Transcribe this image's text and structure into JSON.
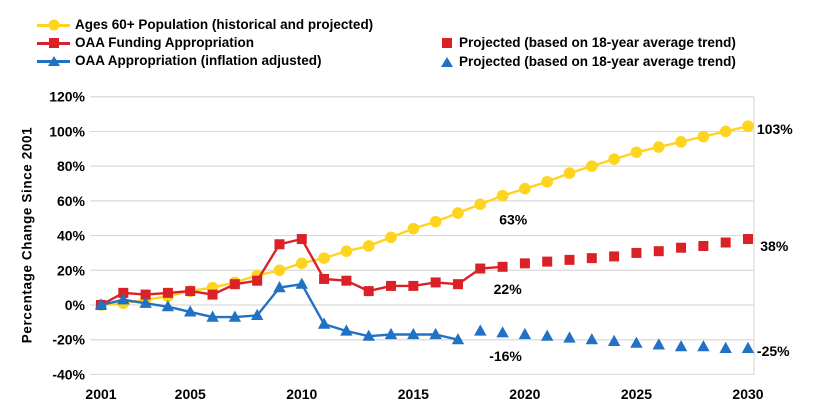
{
  "chart_data": {
    "type": "line",
    "title": "",
    "xlabel": "",
    "ylabel": "Percentage Change Since 2001",
    "xlim": [
      2001,
      2030
    ],
    "ylim": [
      -40,
      120
    ],
    "grid": true,
    "legend_position": "top",
    "x_ticks": [
      "2001",
      "2005",
      "2010",
      "2015",
      "2020",
      "2025",
      "2030"
    ],
    "y_ticks": [
      "120%",
      "100%",
      "80%",
      "60%",
      "40%",
      "20%",
      "0%",
      "-20%",
      "-40%"
    ],
    "colors": {
      "population_yellow": "#FFD41F",
      "appropriation_red": "#DB2128",
      "inflation_blue": "#2171C5",
      "gridline": "#DADADA",
      "text": "#000000",
      "background": "#FFFFFF"
    },
    "series": [
      {
        "name": "Ages 60+ Population (historical and projected)",
        "color": "#FFD41F",
        "marker": "circle",
        "line": true,
        "x": [
          2001,
          2002,
          2003,
          2004,
          2005,
          2006,
          2007,
          2008,
          2009,
          2010,
          2011,
          2012,
          2013,
          2014,
          2015,
          2016,
          2017,
          2018,
          2019,
          2020,
          2021,
          2022,
          2023,
          2024,
          2025,
          2026,
          2027,
          2028,
          2029,
          2030
        ],
        "values": [
          0,
          1,
          3,
          5,
          8,
          10,
          13,
          17,
          20,
          24,
          27,
          31,
          34,
          39,
          44,
          48,
          53,
          58,
          63,
          67,
          71,
          76,
          80,
          84,
          88,
          91,
          94,
          97,
          100,
          103
        ]
      },
      {
        "name": "OAA Funding Appropriation",
        "color": "#DB2128",
        "marker": "square",
        "line": true,
        "x": [
          2001,
          2002,
          2003,
          2004,
          2005,
          2006,
          2007,
          2008,
          2009,
          2010,
          2011,
          2012,
          2013,
          2014,
          2015,
          2016,
          2017,
          2018,
          2019
        ],
        "values": [
          0,
          7,
          6,
          7,
          8,
          6,
          12,
          14,
          35,
          38,
          15,
          14,
          8,
          11,
          11,
          13,
          12,
          21,
          22
        ]
      },
      {
        "name": "Projected (based on 18-year average trend)",
        "color": "#DB2128",
        "marker": "square",
        "line": false,
        "x": [
          2020,
          2021,
          2022,
          2023,
          2024,
          2025,
          2026,
          2027,
          2028,
          2029,
          2030
        ],
        "values": [
          24,
          25,
          26,
          27,
          28,
          30,
          31,
          33,
          34,
          36,
          38
        ]
      },
      {
        "name": "OAA Appropriation (inflation adjusted)",
        "color": "#2171C5",
        "marker": "triangle",
        "line": true,
        "x": [
          2001,
          2002,
          2003,
          2004,
          2005,
          2006,
          2007,
          2008,
          2009,
          2010,
          2011,
          2012,
          2013,
          2014,
          2015,
          2016,
          2017
        ],
        "values": [
          0,
          3,
          1,
          -1,
          -4,
          -7,
          -7,
          -6,
          10,
          12,
          -11,
          -15,
          -18,
          -17,
          -17,
          -17,
          -20
        ]
      },
      {
        "name": "Projected (based on 18-year average trend)",
        "color": "#2171C5",
        "marker": "triangle",
        "line": false,
        "x": [
          2018,
          2019,
          2020,
          2021,
          2022,
          2023,
          2024,
          2025,
          2026,
          2027,
          2028,
          2029,
          2030
        ],
        "values": [
          -15,
          -16,
          -17,
          -18,
          -19,
          -20,
          -21,
          -22,
          -23,
          -24,
          -24,
          -25,
          -25
        ]
      }
    ],
    "annotations": [
      {
        "text": "63%",
        "x": 2018.85,
        "y": 46.5
      },
      {
        "text": "22%",
        "x": 2018.6,
        "y": 6.3
      },
      {
        "text": "-16%",
        "x": 2018.4,
        "y": -32.3
      },
      {
        "text": "103%",
        "x": 2030.4,
        "y": 98.5
      },
      {
        "text": "38%",
        "x": 2030.55,
        "y": 31.0
      },
      {
        "text": "-25%",
        "x": 2030.4,
        "y": -29.5
      }
    ],
    "legend_left": [
      {
        "label": "Ages 60+ Population (historical and projected)",
        "marker": "circle",
        "color": "#FFD41F"
      },
      {
        "label": "OAA Funding Appropriation",
        "marker": "square",
        "color": "#DB2128"
      },
      {
        "label": "OAA Appropriation (inflation adjusted)",
        "marker": "triangle",
        "color": "#2171C5"
      }
    ],
    "legend_right": [
      {
        "label": "Projected (based on 18-year average trend)",
        "marker": "square",
        "color": "#DB2128"
      },
      {
        "label": "Projected (based on 18-year average trend)",
        "marker": "triangle",
        "color": "#2171C5"
      }
    ]
  }
}
